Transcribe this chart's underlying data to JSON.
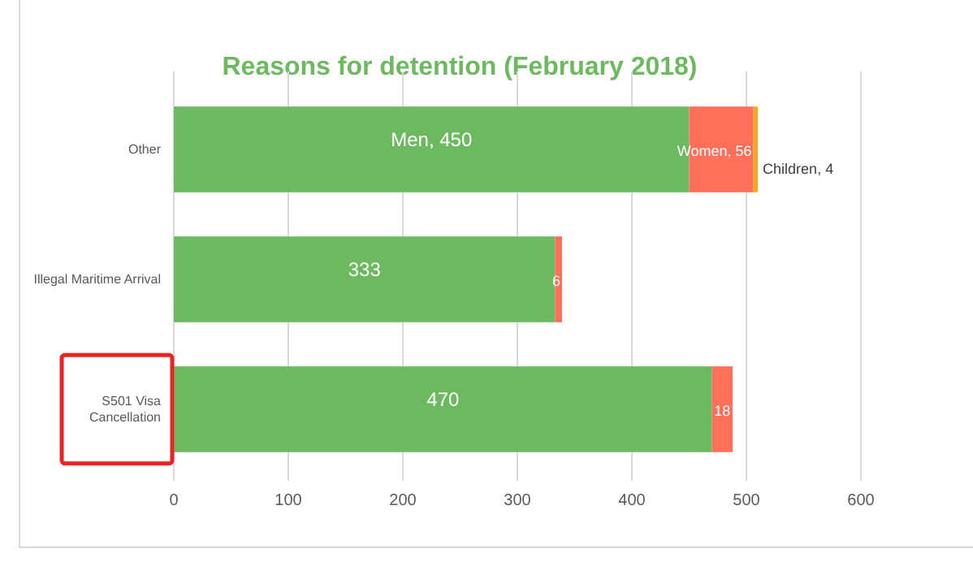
{
  "chart_data": {
    "type": "bar",
    "orientation": "horizontal",
    "stacked": true,
    "title": "Reasons for detention (February 2018)",
    "categories": [
      "Other",
      "Illegal Maritime Arrival",
      "S501 Visa Cancellation"
    ],
    "series": [
      {
        "color": "#6cb960",
        "values": [
          450,
          333,
          470
        ],
        "value_labels": [
          "Men, 450",
          "333",
          "470"
        ]
      },
      {
        "color": "#ff6f5a",
        "values": [
          56,
          6,
          18
        ],
        "value_labels": [
          "Women, 56",
          "6",
          "18"
        ]
      },
      {
        "color": "#f5a623",
        "values": [
          4,
          null,
          null
        ],
        "value_labels": [
          "Children, 4",
          null,
          null
        ]
      }
    ],
    "xlim": [
      0,
      600
    ],
    "xticks": [
      0,
      100,
      200,
      300,
      400,
      500,
      600
    ],
    "grid": "x"
  }
}
